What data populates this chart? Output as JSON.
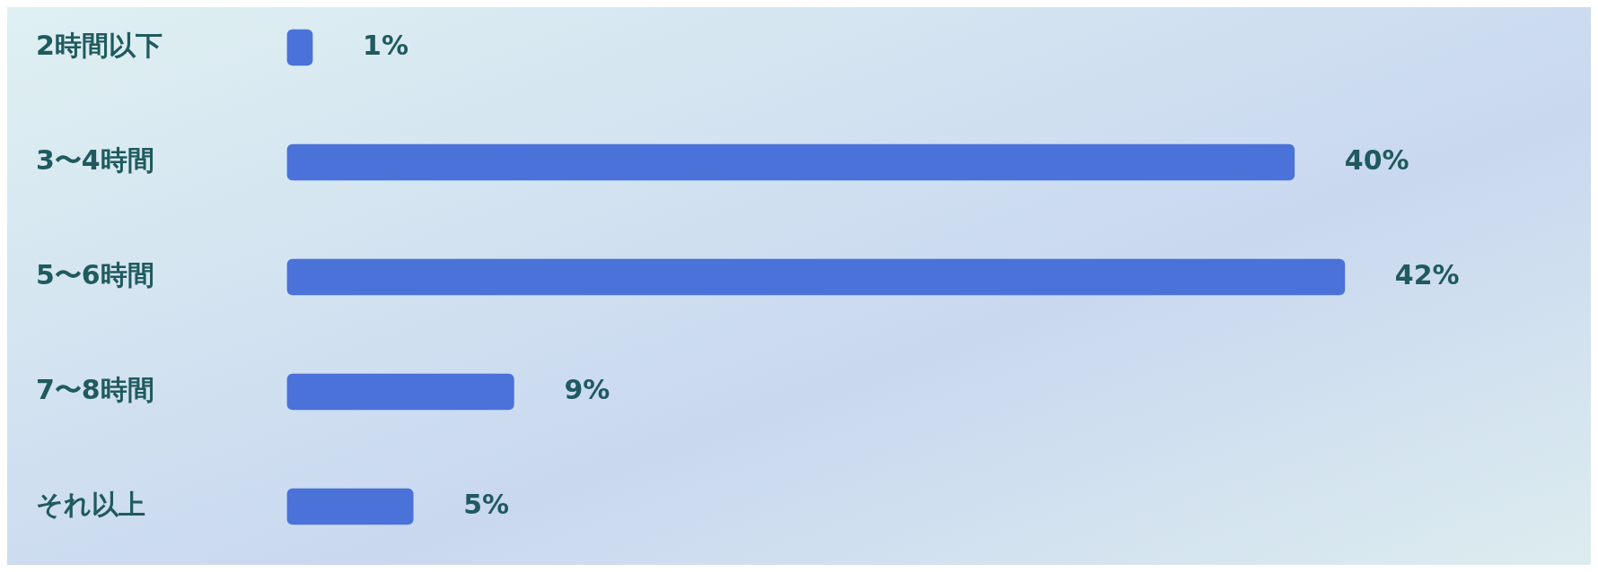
{
  "chart_data": {
    "type": "bar",
    "orientation": "horizontal",
    "categories": [
      "2時間以下",
      "3〜4時間",
      "5〜6時間",
      "7〜8時間",
      "それ以上"
    ],
    "values": [
      1,
      40,
      42,
      9,
      5
    ],
    "value_labels": [
      "1%",
      "40%",
      "42%",
      "9%",
      "5%"
    ],
    "color": "#4a72d8",
    "legend": false,
    "tick_labels": "y"
  }
}
